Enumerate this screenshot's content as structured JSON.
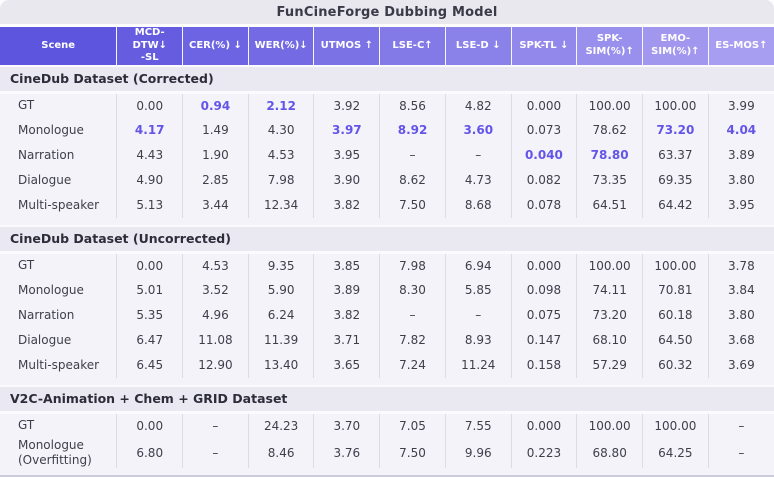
{
  "title": "FunCineForge Dubbing Model",
  "colors": {
    "header_gradient_start": "#5d55de",
    "header_gradient_end": "#a89ef1",
    "highlight": "#6355e8",
    "section_bg": "#eae9f1",
    "data_bg": "#f4f3f9"
  },
  "table": {
    "headers": [
      {
        "label": "Scene"
      },
      {
        "label": "MCD-DTW↓",
        "sub": "-SL"
      },
      {
        "label": "CER(%) ↓"
      },
      {
        "label": "WER(%)↓"
      },
      {
        "label": "UTMOS ↑"
      },
      {
        "label": "LSE-C↑"
      },
      {
        "label": "LSE-D ↓"
      },
      {
        "label": "SPK-TL ↓"
      },
      {
        "label": "SPK-SIM(%)↑"
      },
      {
        "label": "EMO-SIM(%)↑"
      },
      {
        "label": "ES-MOS↑"
      }
    ],
    "sections": [
      {
        "name": "CineDub Dataset (Corrected)",
        "rows": [
          {
            "scene": "GT",
            "values": [
              "0.00",
              "0.94",
              "2.12",
              "3.92",
              "8.56",
              "4.82",
              "0.000",
              "100.00",
              "100.00",
              "3.99"
            ],
            "highlight": [
              1,
              2
            ]
          },
          {
            "scene": "Monologue",
            "values": [
              "4.17",
              "1.49",
              "4.30",
              "3.97",
              "8.92",
              "3.60",
              "0.073",
              "78.62",
              "73.20",
              "4.04"
            ],
            "highlight": [
              0,
              3,
              4,
              5,
              8,
              9
            ]
          },
          {
            "scene": "Narration",
            "values": [
              "4.43",
              "1.90",
              "4.53",
              "3.95",
              "–",
              "–",
              "0.040",
              "78.80",
              "63.37",
              "3.89"
            ],
            "highlight": [
              6,
              7
            ]
          },
          {
            "scene": "Dialogue",
            "values": [
              "4.90",
              "2.85",
              "7.98",
              "3.90",
              "8.62",
              "4.73",
              "0.082",
              "73.35",
              "69.35",
              "3.80"
            ],
            "highlight": []
          },
          {
            "scene": "Multi-speaker",
            "values": [
              "5.13",
              "3.44",
              "12.34",
              "3.82",
              "7.50",
              "8.68",
              "0.078",
              "64.51",
              "64.42",
              "3.95"
            ],
            "highlight": []
          }
        ]
      },
      {
        "name": "CineDub Dataset (Uncorrected)",
        "rows": [
          {
            "scene": "GT",
            "values": [
              "0.00",
              "4.53",
              "9.35",
              "3.85",
              "7.98",
              "6.94",
              "0.000",
              "100.00",
              "100.00",
              "3.78"
            ],
            "highlight": []
          },
          {
            "scene": "Monologue",
            "values": [
              "5.01",
              "3.52",
              "5.90",
              "3.89",
              "8.30",
              "5.85",
              "0.098",
              "74.11",
              "70.81",
              "3.84"
            ],
            "highlight": []
          },
          {
            "scene": "Narration",
            "values": [
              "5.35",
              "4.96",
              "6.24",
              "3.82",
              "–",
              "–",
              "0.075",
              "73.20",
              "60.18",
              "3.80"
            ],
            "highlight": []
          },
          {
            "scene": "Dialogue",
            "values": [
              "6.47",
              "11.08",
              "11.39",
              "3.71",
              "7.82",
              "8.93",
              "0.147",
              "68.10",
              "64.50",
              "3.68"
            ],
            "highlight": []
          },
          {
            "scene": "Multi-speaker",
            "values": [
              "6.45",
              "12.90",
              "13.40",
              "3.65",
              "7.24",
              "11.24",
              "0.158",
              "57.29",
              "60.32",
              "3.69"
            ],
            "highlight": []
          }
        ]
      },
      {
        "name": "V2C-Animation + Chem + GRID Dataset",
        "rows": [
          {
            "scene": "GT",
            "values": [
              "0.00",
              "–",
              "24.23",
              "3.70",
              "7.05",
              "7.55",
              "0.000",
              "100.00",
              "100.00",
              "–"
            ],
            "highlight": []
          },
          {
            "scene": "Monologue (Overfitting)",
            "values": [
              "6.80",
              "–",
              "8.46",
              "3.76",
              "7.50",
              "9.96",
              "0.223",
              "68.80",
              "64.25",
              "–"
            ],
            "highlight": []
          }
        ]
      }
    ]
  }
}
